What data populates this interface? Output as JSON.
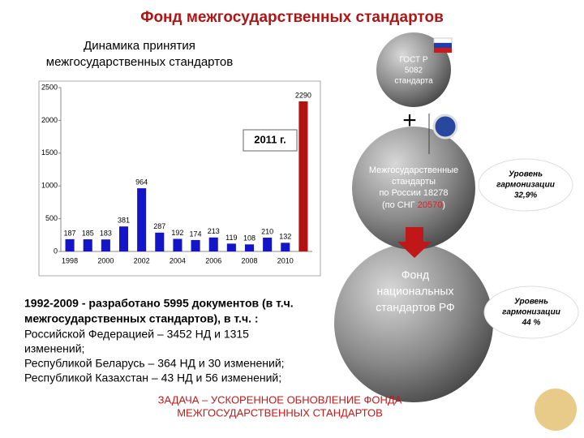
{
  "chart_data": {
    "type": "bar",
    "categories": [
      "1998",
      null,
      "2000",
      null,
      "2002",
      null,
      "2004",
      null,
      "2006",
      null,
      "2008",
      null,
      "2010",
      null
    ],
    "values": [
      187,
      185,
      183,
      381,
      964,
      287,
      192,
      174,
      213,
      119,
      108,
      210,
      132,
      2290
    ],
    "colors": [
      "#1414c8",
      "#1414c8",
      "#1414c8",
      "#1414c8",
      "#1414c8",
      "#1414c8",
      "#1414c8",
      "#1414c8",
      "#1414c8",
      "#1414c8",
      "#1414c8",
      "#1414c8",
      "#1414c8",
      "#b31212"
    ],
    "ylim": [
      0,
      2500
    ],
    "yticks": [
      0,
      500,
      1000,
      1500,
      2000,
      2500
    ],
    "annotation": "2011 г."
  },
  "slide": {
    "title": "Фонд межгосударственных стандартов",
    "chart_caption": [
      "Динамика принятия",
      "межгосударственных стандартов"
    ],
    "top_sphere": [
      "ГОСТ Р",
      "5082",
      "стандарта"
    ],
    "plus": "+",
    "middle_sphere": {
      "lines": [
        "Межгосударственные",
        "стандарты",
        "по России 18278"
      ],
      "cis_open": "(по СНГ ",
      "cis_value": "20570",
      "cis_close": ")"
    },
    "bottom_sphere": [
      "Фонд",
      "национальных",
      "стандартов РФ"
    ],
    "level_1": [
      "Уровень",
      "гармонизации",
      "32,9%"
    ],
    "level_2": [
      "Уровень",
      "гармонизации",
      "44 %"
    ],
    "paragraph_bold": [
      "1992-2009 - разработано 5995 документов (в т.ч.",
      "межгосударственных стандартов), в т.ч. :"
    ],
    "paragraph": [
      "Российской Федерацией – 3452 НД и 1315",
      "изменений;",
      "Республикой Беларусь – 364 НД и 30 изменений;",
      "Республикой Казахстан – 43 НД и 56 изменений;"
    ],
    "task": [
      "ЗАДАЧА – УСКОРЕННОЕ ОБНОВЛЕНИЕ ФОНДА",
      "МЕЖГОСУДАРСТВЕННЫХ СТАНДАРТОВ"
    ]
  }
}
